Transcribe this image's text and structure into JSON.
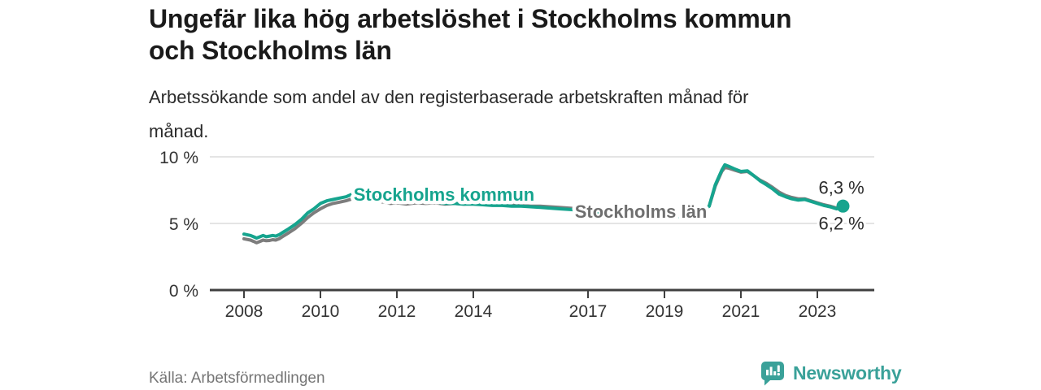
{
  "header": {
    "title_lines": [
      "Ungefär lika hög arbetslöshet i Stockholms kommun",
      "och Stockholms län"
    ],
    "subtitle_lines": [
      "Arbetssökande som andel av den registerbaserade arbetskraften månad för",
      "månad."
    ]
  },
  "footer": {
    "source": "Källa: Arbetsförmedlingen",
    "brand": "Newsworthy"
  },
  "colors": {
    "accent_teal": "#16a48e",
    "logo_teal": "#3aa199",
    "line_gray": "#7d7d7d",
    "label_gray": "#6f6f6f",
    "grid": "#dcdcdc",
    "axis": "#404040",
    "tick_text": "#333333",
    "end_label_text": "#2d2d2d"
  },
  "chart_data": {
    "type": "line",
    "title": "Ungefär lika hög arbetslöshet i Stockholms kommun och Stockholms län",
    "subtitle": "Arbetssökande som andel av den registerbaserade arbetskraften månad för månad.",
    "source": "Källa: Arbetsförmedlingen",
    "xlabel": "",
    "ylabel": "",
    "ylim": [
      0,
      10.5
    ],
    "xlim": [
      2007.1,
      2024.5
    ],
    "grid": "horizontal",
    "legend_position": "inline-labels",
    "yticks": [
      {
        "value": 0,
        "label": "0 %"
      },
      {
        "value": 5,
        "label": "5 %"
      },
      {
        "value": 10,
        "label": "10 %"
      }
    ],
    "xticks": [
      {
        "value": 2008,
        "label": "2008"
      },
      {
        "value": 2010,
        "label": "2010"
      },
      {
        "value": 2012,
        "label": "2012"
      },
      {
        "value": 2014,
        "label": "2014"
      },
      {
        "value": 2017,
        "label": "2017"
      },
      {
        "value": 2019,
        "label": "2019"
      },
      {
        "value": 2021,
        "label": "2021"
      },
      {
        "value": 2023,
        "label": "2023"
      }
    ],
    "series": [
      {
        "name": "Stockholms kommun",
        "color": "#16a48e",
        "end_label": "6,3 %",
        "end_dot": true,
        "points": [
          [
            2008.0,
            4.2
          ],
          [
            2008.08,
            4.15
          ],
          [
            2008.17,
            4.1
          ],
          [
            2008.25,
            4.0
          ],
          [
            2008.33,
            3.9
          ],
          [
            2008.42,
            4.0
          ],
          [
            2008.5,
            4.1
          ],
          [
            2008.58,
            4.0
          ],
          [
            2008.67,
            4.05
          ],
          [
            2008.75,
            4.1
          ],
          [
            2008.83,
            4.05
          ],
          [
            2008.92,
            4.15
          ],
          [
            2009.0,
            4.3
          ],
          [
            2009.17,
            4.6
          ],
          [
            2009.33,
            4.9
          ],
          [
            2009.5,
            5.3
          ],
          [
            2009.67,
            5.8
          ],
          [
            2009.83,
            6.1
          ],
          [
            2010.0,
            6.5
          ],
          [
            2010.17,
            6.7
          ],
          [
            2010.33,
            6.8
          ],
          [
            2010.5,
            6.9
          ],
          [
            2010.67,
            7.0
          ],
          [
            2010.83,
            7.2
          ],
          [
            2011.0,
            7.1
          ],
          [
            2011.17,
            7.25
          ],
          [
            2011.33,
            7.1
          ],
          [
            2011.5,
            6.9
          ],
          [
            2011.67,
            6.8
          ],
          [
            2011.83,
            6.7
          ],
          [
            2012.0,
            6.7
          ],
          [
            2012.25,
            6.6
          ],
          [
            2012.5,
            6.65
          ],
          [
            2012.75,
            6.6
          ],
          [
            2013.0,
            6.6
          ],
          [
            2013.25,
            6.5
          ],
          [
            2013.5,
            6.5
          ],
          [
            2013.75,
            6.45
          ],
          [
            2014.0,
            6.45
          ],
          [
            2014.25,
            6.4
          ],
          [
            2014.5,
            6.35
          ],
          [
            2014.75,
            6.35
          ],
          [
            2015.0,
            6.3
          ],
          [
            2015.25,
            6.3
          ],
          [
            2015.5,
            6.25
          ],
          [
            2015.75,
            6.2
          ],
          [
            2016.0,
            6.15
          ],
          [
            2016.25,
            6.1
          ],
          [
            2016.5,
            6.05
          ],
          [
            2016.75,
            6.0
          ],
          [
            2017.0,
            5.95
          ],
          [
            2017.25,
            5.85
          ],
          [
            2017.5,
            5.75
          ],
          [
            2017.75,
            5.65
          ],
          [
            2018.0,
            5.6
          ],
          [
            2018.25,
            5.5
          ],
          [
            2018.5,
            5.45
          ],
          [
            2018.75,
            5.45
          ],
          [
            2019.0,
            5.5
          ],
          [
            2019.25,
            5.5
          ],
          [
            2019.5,
            5.55
          ],
          [
            2019.75,
            5.65
          ],
          [
            2020.0,
            5.9
          ],
          [
            2020.17,
            6.3
          ],
          [
            2020.33,
            7.9
          ],
          [
            2020.5,
            9.0
          ],
          [
            2020.58,
            9.4
          ],
          [
            2020.67,
            9.3
          ],
          [
            2020.83,
            9.1
          ],
          [
            2021.0,
            8.9
          ],
          [
            2021.17,
            8.95
          ],
          [
            2021.33,
            8.6
          ],
          [
            2021.5,
            8.2
          ],
          [
            2021.67,
            7.9
          ],
          [
            2021.83,
            7.6
          ],
          [
            2022.0,
            7.2
          ],
          [
            2022.17,
            7.0
          ],
          [
            2022.33,
            6.85
          ],
          [
            2022.5,
            6.75
          ],
          [
            2022.67,
            6.8
          ],
          [
            2022.83,
            6.65
          ],
          [
            2023.0,
            6.5
          ],
          [
            2023.17,
            6.35
          ],
          [
            2023.33,
            6.25
          ],
          [
            2023.5,
            6.1
          ],
          [
            2023.58,
            6.15
          ],
          [
            2023.67,
            6.3
          ]
        ]
      },
      {
        "name": "Stockholms län",
        "color": "#7d7d7d",
        "end_label": "6,2 %",
        "end_dot": false,
        "points": [
          [
            2008.0,
            3.85
          ],
          [
            2008.08,
            3.8
          ],
          [
            2008.17,
            3.75
          ],
          [
            2008.25,
            3.65
          ],
          [
            2008.33,
            3.55
          ],
          [
            2008.42,
            3.65
          ],
          [
            2008.5,
            3.75
          ],
          [
            2008.58,
            3.7
          ],
          [
            2008.67,
            3.72
          ],
          [
            2008.75,
            3.78
          ],
          [
            2008.83,
            3.75
          ],
          [
            2008.92,
            3.85
          ],
          [
            2009.0,
            4.0
          ],
          [
            2009.17,
            4.3
          ],
          [
            2009.33,
            4.6
          ],
          [
            2009.5,
            5.0
          ],
          [
            2009.67,
            5.45
          ],
          [
            2009.83,
            5.8
          ],
          [
            2010.0,
            6.1
          ],
          [
            2010.17,
            6.35
          ],
          [
            2010.33,
            6.5
          ],
          [
            2010.5,
            6.6
          ],
          [
            2010.67,
            6.7
          ],
          [
            2010.83,
            6.85
          ],
          [
            2011.0,
            6.8
          ],
          [
            2011.17,
            6.9
          ],
          [
            2011.33,
            6.8
          ],
          [
            2011.5,
            6.65
          ],
          [
            2011.67,
            6.6
          ],
          [
            2011.83,
            6.5
          ],
          [
            2012.0,
            6.55
          ],
          [
            2012.25,
            6.45
          ],
          [
            2012.5,
            6.55
          ],
          [
            2012.75,
            6.5
          ],
          [
            2013.0,
            6.55
          ],
          [
            2013.25,
            6.45
          ],
          [
            2013.5,
            6.5
          ],
          [
            2013.75,
            6.45
          ],
          [
            2014.0,
            6.5
          ],
          [
            2014.25,
            6.45
          ],
          [
            2014.5,
            6.4
          ],
          [
            2014.75,
            6.4
          ],
          [
            2015.0,
            6.4
          ],
          [
            2015.25,
            6.35
          ],
          [
            2015.5,
            6.3
          ],
          [
            2015.75,
            6.3
          ],
          [
            2016.0,
            6.25
          ],
          [
            2016.25,
            6.2
          ],
          [
            2016.5,
            6.15
          ],
          [
            2016.75,
            6.1
          ],
          [
            2017.0,
            6.05
          ],
          [
            2017.25,
            5.95
          ],
          [
            2017.5,
            5.85
          ],
          [
            2017.75,
            5.75
          ],
          [
            2018.0,
            5.7
          ],
          [
            2018.25,
            5.6
          ],
          [
            2018.5,
            5.55
          ],
          [
            2018.75,
            5.55
          ],
          [
            2019.0,
            5.55
          ],
          [
            2019.25,
            5.6
          ],
          [
            2019.5,
            5.6
          ],
          [
            2019.75,
            5.7
          ],
          [
            2020.0,
            5.95
          ],
          [
            2020.17,
            6.3
          ],
          [
            2020.33,
            7.8
          ],
          [
            2020.5,
            8.9
          ],
          [
            2020.58,
            9.2
          ],
          [
            2020.67,
            9.15
          ],
          [
            2020.83,
            9.0
          ],
          [
            2021.0,
            8.85
          ],
          [
            2021.17,
            8.9
          ],
          [
            2021.33,
            8.6
          ],
          [
            2021.5,
            8.25
          ],
          [
            2021.67,
            8.0
          ],
          [
            2021.83,
            7.7
          ],
          [
            2022.0,
            7.35
          ],
          [
            2022.17,
            7.1
          ],
          [
            2022.33,
            6.95
          ],
          [
            2022.5,
            6.85
          ],
          [
            2022.67,
            6.85
          ],
          [
            2022.83,
            6.7
          ],
          [
            2023.0,
            6.55
          ],
          [
            2023.17,
            6.4
          ],
          [
            2023.33,
            6.3
          ],
          [
            2023.5,
            6.15
          ],
          [
            2023.58,
            6.1
          ],
          [
            2023.67,
            6.2
          ]
        ]
      }
    ]
  }
}
